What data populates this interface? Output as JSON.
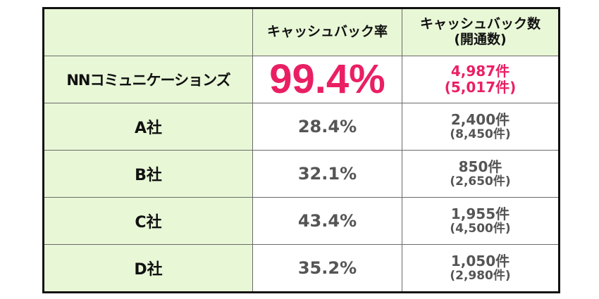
{
  "header": {
    "col1": "",
    "col2": "キャッシュバック率",
    "col3_line1": "キャッシュバック数",
    "col3_line2": "(開通数)"
  },
  "rows": [
    {
      "name": "NNコミュニケーションズ",
      "rate": "99.4%",
      "count": "4,987件",
      "opened": "(5,017件)"
    },
    {
      "name": "A社",
      "rate": "28.4%",
      "count": "2,400件",
      "opened": "(8,450件)"
    },
    {
      "name": "B社",
      "rate": "32.1%",
      "count": "850件",
      "opened": "(2,650件)"
    },
    {
      "name": "C社",
      "rate": "43.4%",
      "count": "1,955件",
      "opened": "(4,500件)"
    },
    {
      "name": "D社",
      "rate": "35.2%",
      "count": "1,050件",
      "opened": "(2,980件)"
    }
  ],
  "colors": {
    "highlight": "#ea1f63",
    "header_bg": "#e8f7d6",
    "text_gray": "#555555"
  }
}
